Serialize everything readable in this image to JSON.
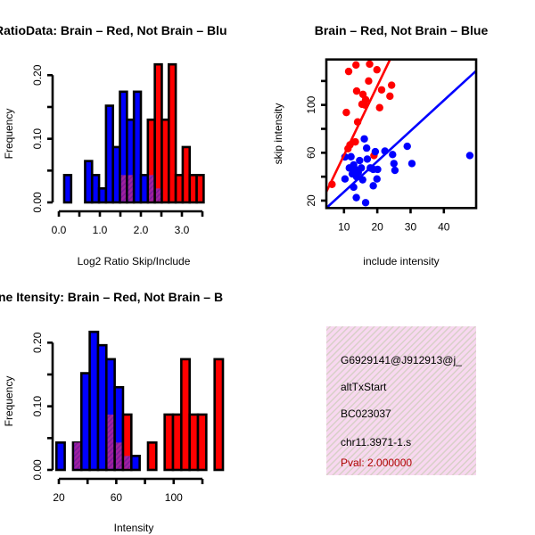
{
  "colors": {
    "brain": "#ff0000",
    "not_brain": "#0000ff",
    "overlap": "#a020a0",
    "info_bg": "#f8d8f0",
    "pval": "#b00000"
  },
  "chart_data": [
    {
      "type": "bar",
      "title": "RatioData: Brain – Red, Not Brain – Blu",
      "xlabel": "Log2 Ratio Skip/Include",
      "ylabel": "Frequency",
      "xlim": [
        0,
        3.5
      ],
      "ylim": [
        0,
        0.22
      ],
      "x_ticks": [
        0,
        0.5,
        1,
        1.5,
        2,
        2.5,
        3,
        3.5
      ],
      "x_tick_labels": [
        "0.0",
        "1.0",
        "2.0",
        "3.0"
      ],
      "x_tick_label_values": [
        0,
        1,
        2,
        3
      ],
      "y_ticks": [
        0,
        0.05,
        0.1,
        0.15,
        0.2
      ],
      "y_tick_labels": [
        "0.00",
        "0.10",
        "0.20"
      ],
      "y_tick_label_values": [
        0,
        0.1,
        0.2
      ],
      "bin_start": 0.13,
      "bin_width": 0.17,
      "series": [
        {
          "name": "Not Brain",
          "color": "blue",
          "values": [
            0.043,
            0,
            0,
            0.065,
            0.043,
            0.022,
            0.152,
            0.087,
            0.174,
            0.13,
            0.174,
            0.043,
            0.043,
            0.022,
            0,
            0,
            0,
            0,
            0,
            0
          ]
        },
        {
          "name": "Brain",
          "color": "red",
          "values": [
            0,
            0,
            0,
            0,
            0,
            0,
            0,
            0,
            0.043,
            0.043,
            0,
            0,
            0.13,
            0.217,
            0.13,
            0.217,
            0.043,
            0.087,
            0.043,
            0.043
          ]
        }
      ]
    },
    {
      "type": "scatter",
      "title": "Brain – Red, Not Brain – Blue",
      "xlabel": "include intensity",
      "ylabel": "skip intensity",
      "xlim": [
        4.7,
        49.7
      ],
      "ylim": [
        13.8,
        138
      ],
      "x_ticks": [
        10,
        20,
        30,
        40
      ],
      "x_tick_labels": [
        "10",
        "20",
        "30",
        "40"
      ],
      "y_ticks": [
        20,
        40,
        60,
        80,
        100,
        120
      ],
      "y_tick_labels": [
        "20",
        "60",
        "100"
      ],
      "y_tick_label_values": [
        20,
        60,
        100
      ],
      "series": [
        {
          "name": "Brain",
          "color": "red",
          "points": [
            [
              11.4,
              128
            ],
            [
              13.6,
              133.4
            ],
            [
              17.7,
              134.1
            ],
            [
              19.9,
              129.4
            ],
            [
              17.4,
              120
            ],
            [
              24.3,
              116.5
            ],
            [
              21.3,
              112.6
            ],
            [
              13.8,
              111.6
            ],
            [
              15.7,
              108.8
            ],
            [
              23.8,
              107.3
            ],
            [
              16.5,
              104.4
            ],
            [
              15.4,
              100.6
            ],
            [
              16.3,
              99.9
            ],
            [
              20.7,
              97.7
            ],
            [
              10.7,
              93.7
            ],
            [
              14.1,
              85.8
            ],
            [
              13.4,
              69.1
            ],
            [
              11.8,
              66.6
            ],
            [
              11.2,
              63.4
            ],
            [
              6.4,
              33.6
            ],
            [
              19.0,
              57.7
            ]
          ],
          "fit": {
            "slope": 5.78,
            "intercept": 0.2
          }
        },
        {
          "name": "Not Brain",
          "color": "blue",
          "points": [
            [
              16.1,
              71.6
            ],
            [
              16.8,
              63.9
            ],
            [
              10.3,
              56.5
            ],
            [
              12.1,
              56.7
            ],
            [
              19.4,
              60.9
            ],
            [
              22.3,
              61.4
            ],
            [
              29.0,
              65.4
            ],
            [
              24.6,
              58.5
            ],
            [
              47.8,
              57.7
            ],
            [
              30.4,
              51
            ],
            [
              25,
              51
            ],
            [
              25.3,
              45.3
            ],
            [
              20.1,
              46.1
            ],
            [
              19.9,
              38.1
            ],
            [
              18.8,
              32.4
            ],
            [
              13.7,
              22.5
            ],
            [
              16.5,
              18.3
            ],
            [
              12.9,
              31.2
            ],
            [
              10.3,
              38.1
            ],
            [
              11.6,
              47.3
            ],
            [
              12.9,
              49.8
            ],
            [
              14.7,
              53.5
            ],
            [
              14.3,
              43.6
            ],
            [
              15.6,
              37.4
            ],
            [
              17.9,
              47.3
            ],
            [
              13.8,
              39.9
            ],
            [
              12.5,
              42.3
            ],
            [
              15.2,
              47.3
            ],
            [
              18.8,
              46.1
            ],
            [
              17,
              54.7
            ],
            [
              13.4,
              46.1
            ]
          ],
          "fit": {
            "slope": 2.55,
            "intercept": 1.8
          }
        }
      ]
    },
    {
      "type": "bar",
      "title": "ne Itensity: Brain – Red, Not Brain – B",
      "xlabel": "Intensity",
      "ylabel": "Frequency",
      "xlim": [
        20,
        120
      ],
      "ylim": [
        0,
        0.22
      ],
      "x_ticks": [
        20,
        40,
        60,
        80,
        100,
        120
      ],
      "x_tick_labels": [
        "20",
        "60",
        "100"
      ],
      "x_tick_label_values": [
        20,
        60,
        100
      ],
      "y_ticks": [
        0,
        0.05,
        0.1,
        0.15,
        0.2
      ],
      "y_tick_labels": [
        "0.00",
        "0.10",
        "0.20"
      ],
      "y_tick_label_values": [
        0,
        0.1,
        0.2
      ],
      "bin_start": 18.3,
      "bin_width": 5.8,
      "series": [
        {
          "name": "Not Brain",
          "color": "blue",
          "values": [
            0.043,
            0,
            0.043,
            0.152,
            0.217,
            0.196,
            0.174,
            0.13,
            0.022,
            0.022,
            0,
            0,
            0,
            0,
            0,
            0,
            0,
            0,
            0,
            0
          ]
        },
        {
          "name": "Brain",
          "color": "red",
          "values": [
            0,
            0,
            0.043,
            0,
            0,
            0,
            0.087,
            0.043,
            0.087,
            0,
            0,
            0.043,
            0,
            0.087,
            0.087,
            0.174,
            0.087,
            0.087,
            0,
            0.174
          ]
        }
      ]
    }
  ],
  "info_panel": {
    "lines": [
      "G6929141@J912913@j_",
      "altTxStart",
      "BC023037",
      "chr11.3971-1.s"
    ],
    "pval": "Pval: 2.000000"
  }
}
